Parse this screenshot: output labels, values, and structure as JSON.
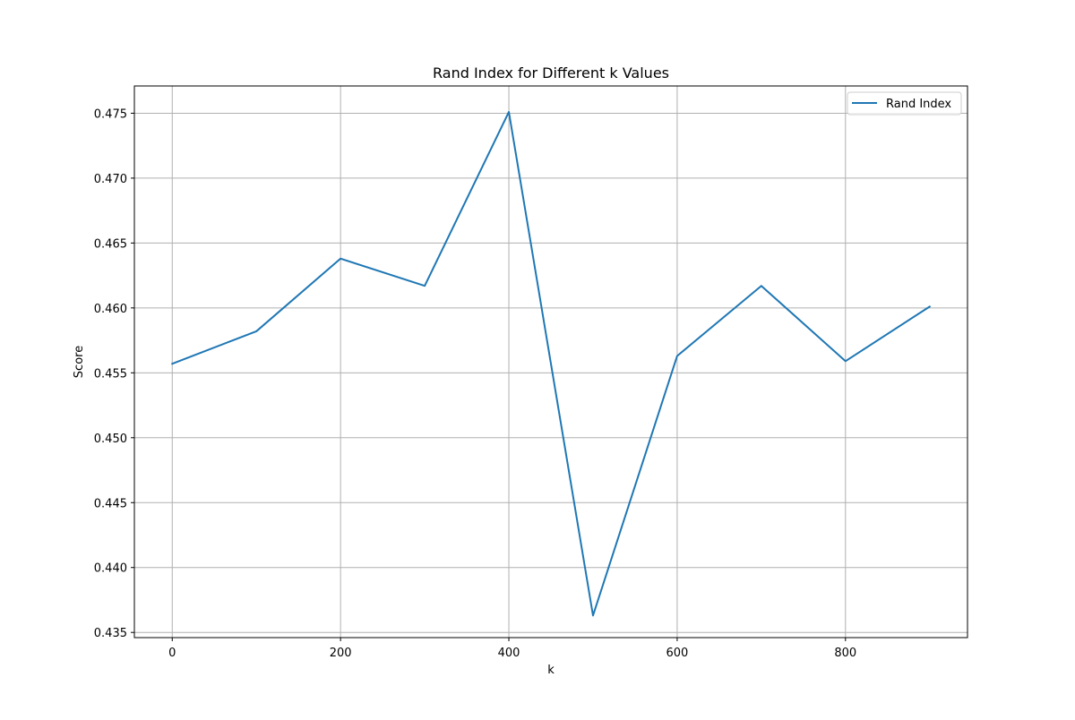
{
  "chart_data": {
    "type": "line",
    "title": "Rand Index for Different k Values",
    "xlabel": "k",
    "ylabel": "Score",
    "xlim": [
      -45,
      945
    ],
    "ylim": [
      0.4346,
      0.4771
    ],
    "xticks": [
      0,
      200,
      400,
      600,
      800
    ],
    "xtick_labels": [
      "0",
      "200",
      "400",
      "600",
      "800"
    ],
    "yticks": [
      0.435,
      0.44,
      0.445,
      0.45,
      0.455,
      0.46,
      0.465,
      0.47,
      0.475
    ],
    "ytick_labels": [
      "0.435",
      "0.440",
      "0.445",
      "0.450",
      "0.455",
      "0.460",
      "0.465",
      "0.470",
      "0.475"
    ],
    "grid": true,
    "legend_position": "top-right",
    "series": [
      {
        "name": "Rand Index",
        "color": "#1f77b4",
        "x": [
          0,
          100,
          200,
          300,
          400,
          500,
          600,
          700,
          800,
          900
        ],
        "y": [
          0.4557,
          0.4582,
          0.4638,
          0.4617,
          0.4751,
          0.4363,
          0.4563,
          0.4617,
          0.4559,
          0.4601
        ]
      }
    ]
  }
}
